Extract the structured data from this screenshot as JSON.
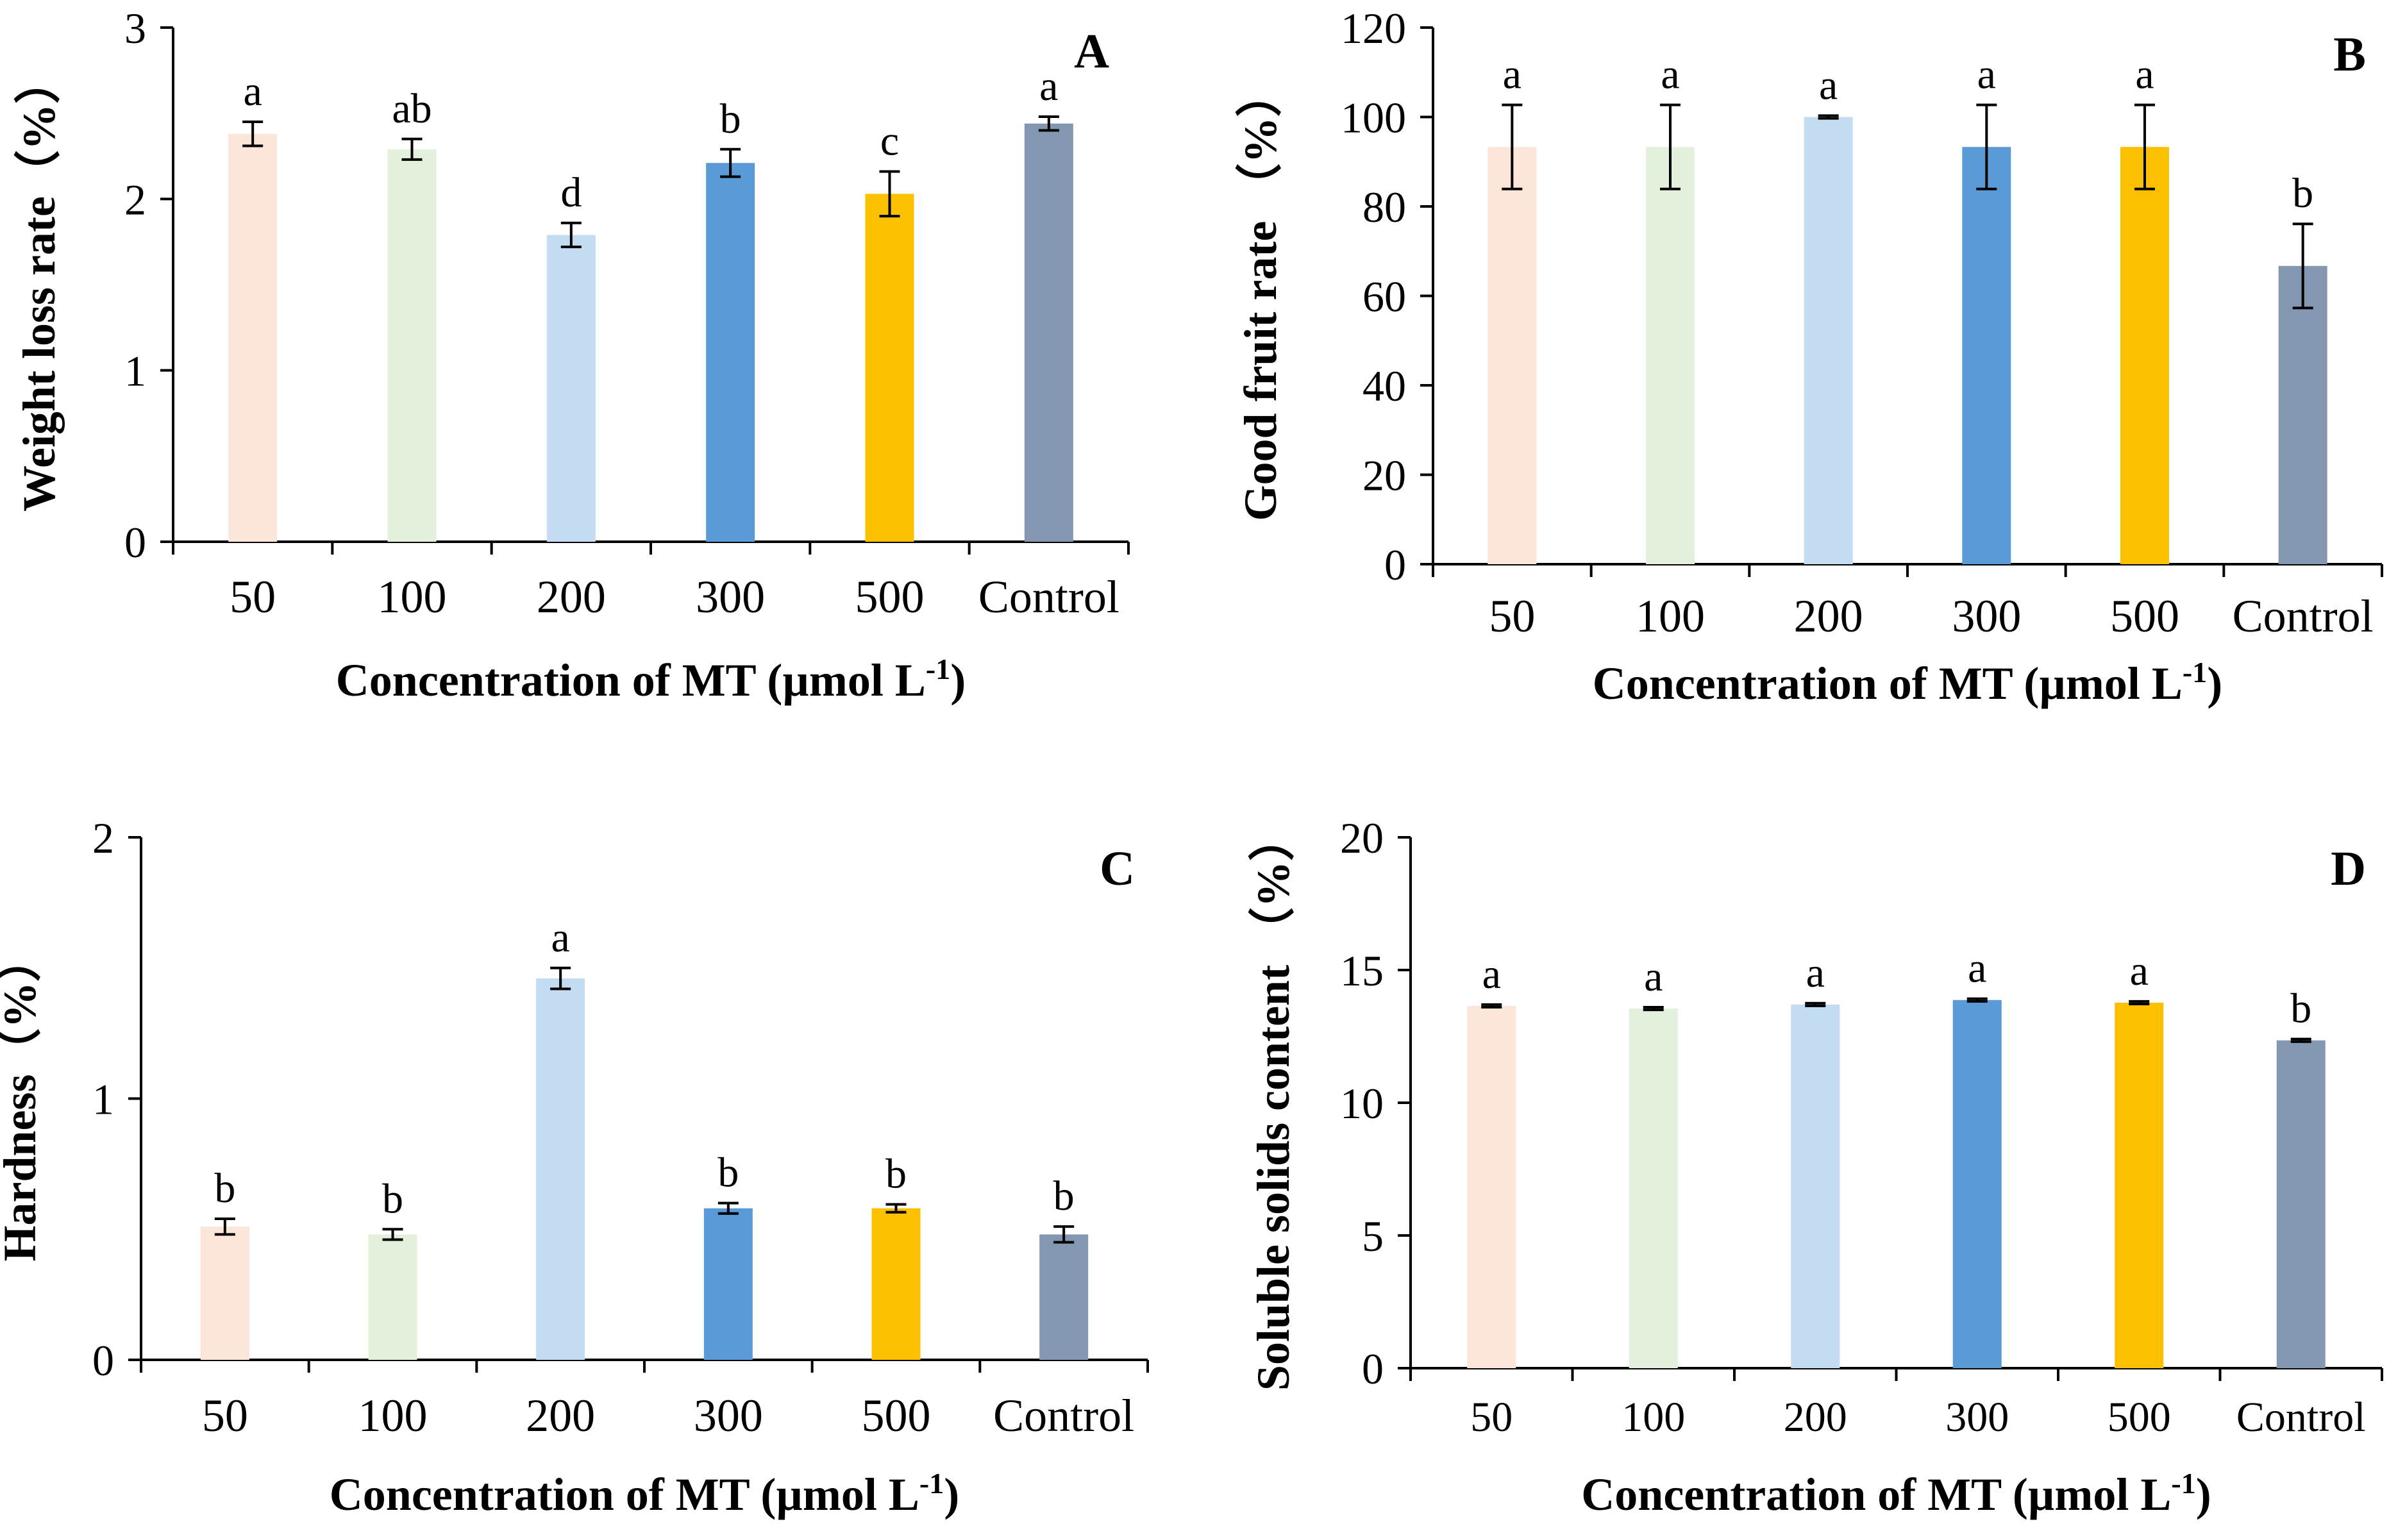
{
  "chart_data": [
    {
      "type": "bar",
      "panel": "A",
      "categories": [
        "50",
        "100",
        "200",
        "300",
        "500",
        "Control"
      ],
      "values": [
        2.38,
        2.29,
        1.79,
        2.21,
        2.03,
        2.44
      ],
      "errors": [
        0.07,
        0.06,
        0.07,
        0.08,
        0.13,
        0.04
      ],
      "significance": [
        "a",
        "ab",
        "d",
        "b",
        "c",
        "a"
      ],
      "ylabel": "Weight loss rate（%）",
      "xlabel": "Concentration of  MT (µmol L",
      "xlabel_sup": "-1",
      "xlabel_end": ")",
      "ylim": [
        0,
        3
      ],
      "yticks": [
        "0",
        "1",
        "2",
        "3"
      ]
    },
    {
      "type": "bar",
      "panel": "B",
      "categories": [
        "50",
        "100",
        "200",
        "300",
        "500",
        "Control"
      ],
      "values": [
        93.3,
        93.3,
        100,
        93.3,
        93.3,
        66.7
      ],
      "errors": [
        9.4,
        9.4,
        0.3,
        9.4,
        9.4,
        9.4
      ],
      "significance": [
        "a",
        "a",
        "a",
        "a",
        "a",
        "b"
      ],
      "ylabel": "Good  fruit rate （%）",
      "xlabel": "Concentration of MT (µmol L",
      "xlabel_sup": "-1",
      "xlabel_end": ")",
      "ylim": [
        0,
        120
      ],
      "yticks": [
        "0",
        "20",
        "40",
        "60",
        "80",
        "100",
        "120"
      ]
    },
    {
      "type": "bar",
      "panel": "C",
      "categories": [
        "50",
        "100",
        "200",
        "300",
        "500",
        "Control"
      ],
      "values": [
        0.51,
        0.48,
        1.46,
        0.58,
        0.58,
        0.48
      ],
      "errors": [
        0.03,
        0.02,
        0.04,
        0.02,
        0.015,
        0.03
      ],
      "significance": [
        "b",
        "b",
        "a",
        "b",
        "b",
        "b"
      ],
      "ylabel": "Hardness（%）",
      "xlabel": "Concentration of  MT (µmol L",
      "xlabel_sup": "-1",
      "xlabel_end": ")",
      "ylim": [
        0,
        2
      ],
      "yticks": [
        "0",
        "1",
        "2"
      ]
    },
    {
      "type": "bar",
      "panel": "D",
      "categories": [
        "50",
        "100",
        "200",
        "300",
        "500",
        "Control"
      ],
      "values": [
        13.65,
        13.55,
        13.7,
        13.87,
        13.77,
        12.35
      ],
      "errors": [
        0.05,
        0.05,
        0.05,
        0.05,
        0.05,
        0.05
      ],
      "significance": [
        "a",
        "a",
        "a",
        "a",
        "a",
        "b"
      ],
      "ylabel": "Soluble solids content （%）",
      "xlabel": "Concentration of  MT (µmol L",
      "xlabel_sup": "-1",
      "xlabel_end": ")",
      "ylim": [
        0,
        20
      ],
      "yticks": [
        "0",
        "5",
        "10",
        "15",
        "20"
      ]
    }
  ],
  "bar_colors": [
    "#fce6da",
    "#e3f1dc",
    "#c4dcf2",
    "#5a9ad6",
    "#fcc000",
    "#8497b0"
  ]
}
